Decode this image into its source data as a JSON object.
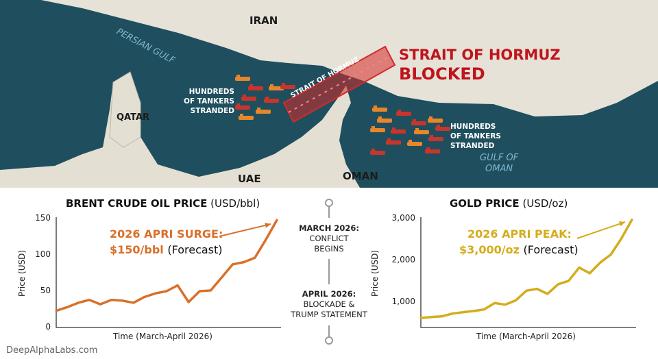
{
  "map": {
    "labels": {
      "iran": "IRAN",
      "persian_gulf": "PERSIAN GULF",
      "qatar": "QATAR",
      "uae": "UAE",
      "oman": "OMAN",
      "gulf_of_oman_1": "GULF OF",
      "gulf_of_oman_2": "OMAN",
      "strait": "STRAIT OF HORMUZ"
    },
    "headline_1": "STRAIT OF HORMUZ",
    "headline_2": "BLOCKED",
    "stranded_left": [
      "HUNDREDS",
      "OF TANKERS",
      "STRANDED"
    ],
    "stranded_right": [
      "HUNDREDS",
      "OF TANKERS",
      "STRANDED"
    ],
    "colors": {
      "water": "#1f4f5e",
      "land": "#e6e2d8",
      "blocked": "#d42a2a",
      "tanker_orange": "#e8862a",
      "tanker_red": "#c9352a"
    }
  },
  "timeline": {
    "events": [
      {
        "date": "MARCH 2026:",
        "line1": "CONFLICT",
        "line2": "BEGINS"
      },
      {
        "date": "APRIL 2026:",
        "line1": "BLOCKADE &",
        "line2": "TRUMP STATEMENT"
      }
    ]
  },
  "watermark": "DeepAlphaLabs.com",
  "chart_data": [
    {
      "type": "line",
      "title": "BRENT CRUDE OIL PRICE",
      "title_unit": "(USD/bbl)",
      "xlabel": "Time (March-April 2026)",
      "ylabel": "Price (USD)",
      "ylim": [
        0,
        150
      ],
      "yticks": [
        "0",
        "50",
        "100",
        "150"
      ],
      "ytick_values": [
        0,
        50,
        100,
        150
      ],
      "color": "#d9702a",
      "values": [
        23,
        28,
        34,
        38,
        32,
        38,
        37,
        34,
        42,
        47,
        50,
        58,
        35,
        50,
        51,
        69,
        87,
        90,
        96,
        121,
        148
      ],
      "annotation": {
        "line1": "2026 APRI SURGE:",
        "value": "$150/bbl",
        "note": "(Forecast)"
      }
    },
    {
      "type": "line",
      "title": "GOLD PRICE",
      "title_unit": "(USD/oz)",
      "xlabel": "Time (March-April 2026)",
      "ylabel": "Price (USD)",
      "ylim": [
        386,
        3000
      ],
      "yticks": [
        "1,000",
        "2,000",
        "3,000"
      ],
      "ytick_values": [
        1000,
        2000,
        3000
      ],
      "color": "#d4ac1c",
      "values": [
        615,
        637,
        654,
        720,
        753,
        780,
        819,
        973,
        934,
        1038,
        1269,
        1313,
        1192,
        1423,
        1505,
        1824,
        1687,
        1945,
        2137,
        2522,
        2973
      ],
      "annotation": {
        "line1": "2026 APRI PEAK:",
        "value": "$3,000/oz",
        "note": "(Forecast)"
      }
    }
  ]
}
